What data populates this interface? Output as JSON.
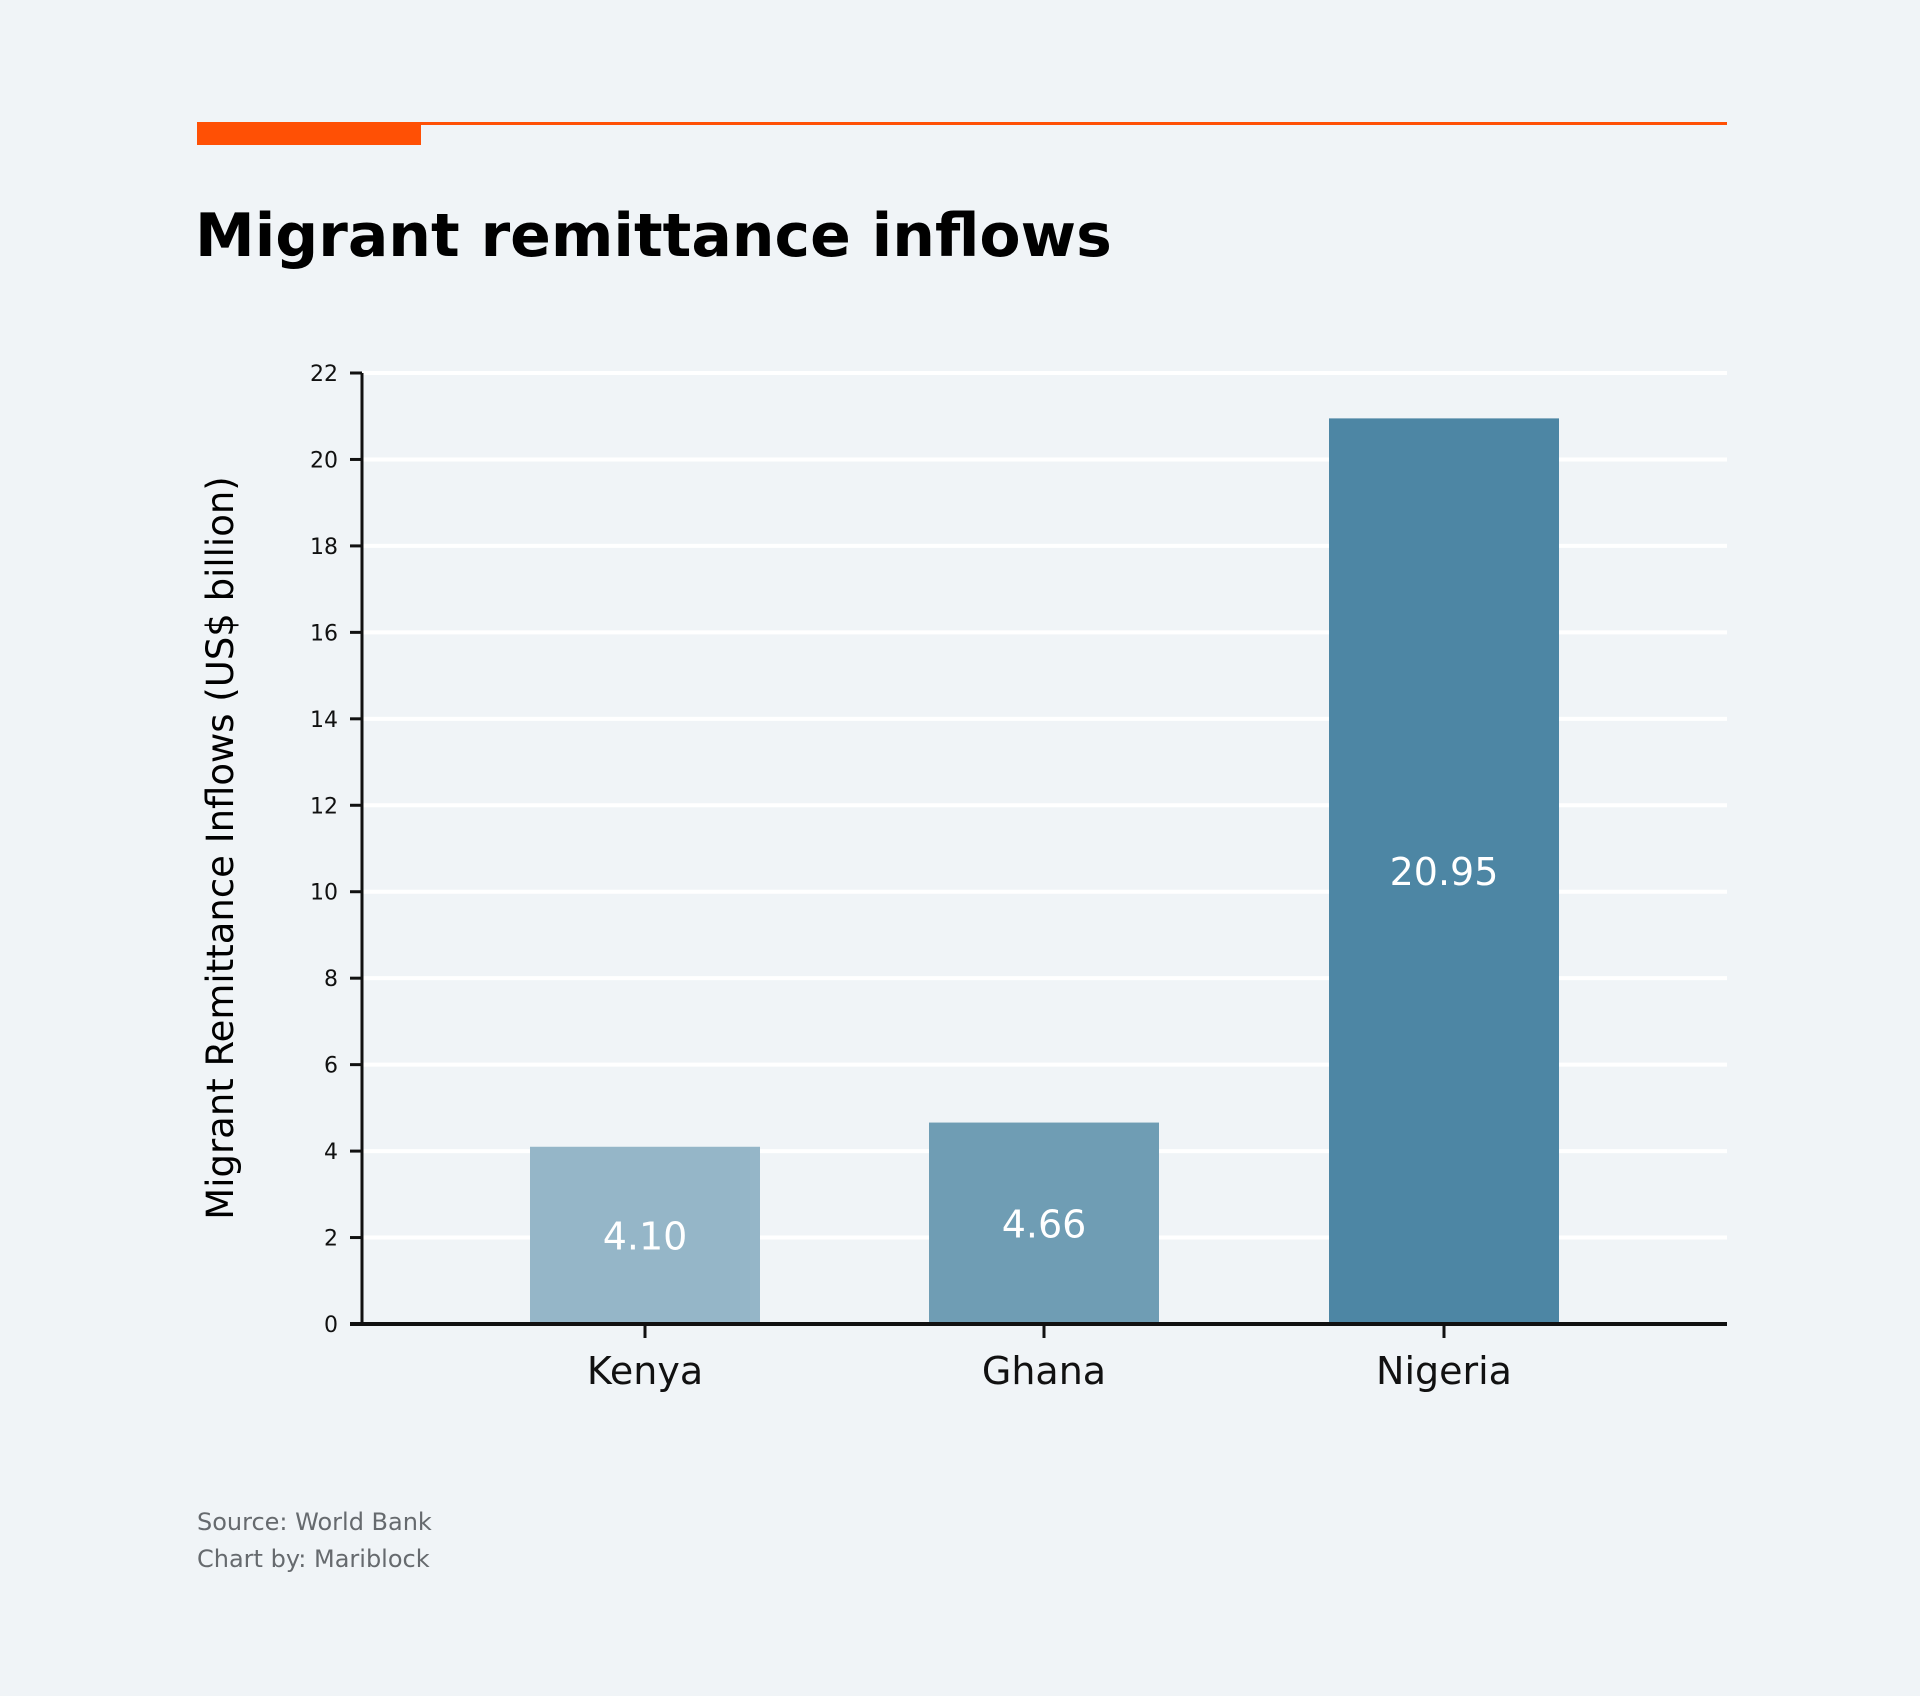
{
  "colors": {
    "background": "#f0f4f7",
    "accent": "#ff5005",
    "axis": "#111111",
    "grid": "#ffffff"
  },
  "title": "Migrant remittance inflows",
  "footer": {
    "source": "Source: World Bank",
    "credit": "Chart by: Mariblock"
  },
  "chart_data": {
    "type": "bar",
    "title": "Migrant remittance inflows",
    "xlabel": "",
    "ylabel": "Migrant Remittance Inflows (US$ billion)",
    "categories": [
      "Kenya",
      "Ghana",
      "Nigeria"
    ],
    "values": [
      4.1,
      4.66,
      20.95
    ],
    "data_labels": [
      "4.10",
      "4.66",
      "20.95"
    ],
    "bar_colors": [
      "#95b6c8",
      "#6f9db4",
      "#4d86a4"
    ],
    "ylim": [
      0,
      22
    ],
    "yticks": [
      0,
      2,
      4,
      6,
      8,
      10,
      12,
      14,
      16,
      18,
      20,
      22
    ],
    "grid": true,
    "legend": "none"
  }
}
